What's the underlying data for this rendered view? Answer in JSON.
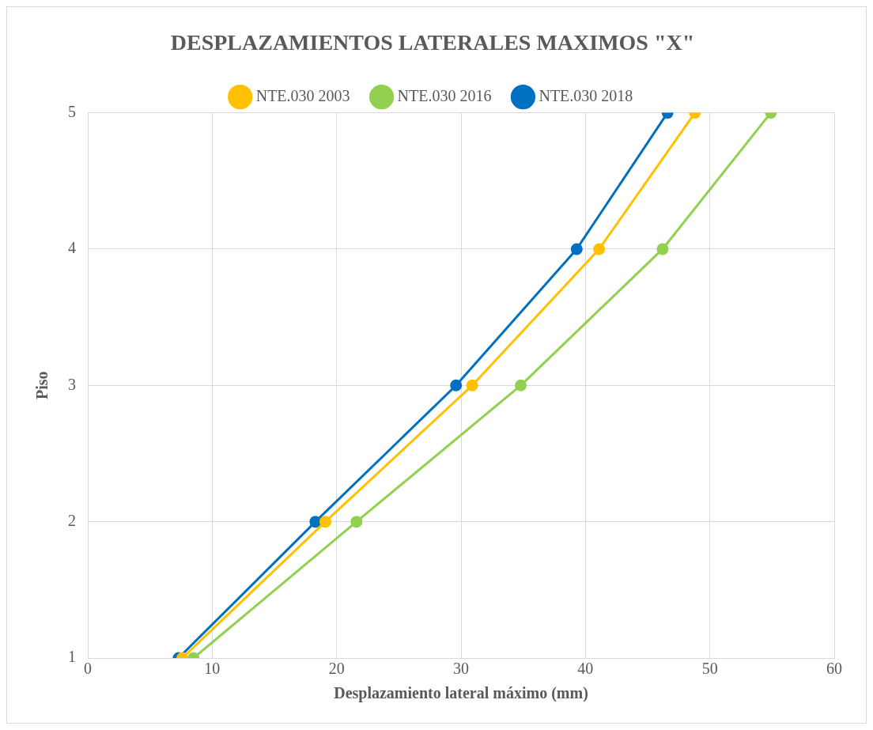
{
  "chart_data": {
    "type": "line",
    "title": "DESPLAZAMIENTOS LATERALES MAXIMOS \"X\"",
    "xlabel": "Desplazamiento lateral máximo (mm)",
    "ylabel": "Piso",
    "series": [
      {
        "name": "NTE.030 2003",
        "color": "#ffc000",
        "x": [
          7.6,
          19.1,
          30.9,
          41.1,
          48.8
        ],
        "values": [
          1,
          2,
          3,
          4,
          5
        ]
      },
      {
        "name": "NTE.030 2016",
        "color": "#92d050",
        "x": [
          8.5,
          21.6,
          34.8,
          46.2,
          54.9
        ],
        "values": [
          1,
          2,
          3,
          4,
          5
        ]
      },
      {
        "name": "NTE.030 2018",
        "color": "#0070c0",
        "x": [
          7.3,
          18.3,
          29.6,
          39.3,
          46.6
        ],
        "values": [
          1,
          2,
          3,
          4,
          5
        ]
      }
    ],
    "xlim": [
      0,
      60
    ],
    "xticks": [
      0,
      10,
      20,
      30,
      40,
      50,
      60
    ],
    "ylim": [
      1,
      5
    ],
    "yticks": [
      1,
      2,
      3,
      4,
      5
    ],
    "grid": true,
    "legend": "top",
    "marker": "circle",
    "line_style": "solid"
  }
}
